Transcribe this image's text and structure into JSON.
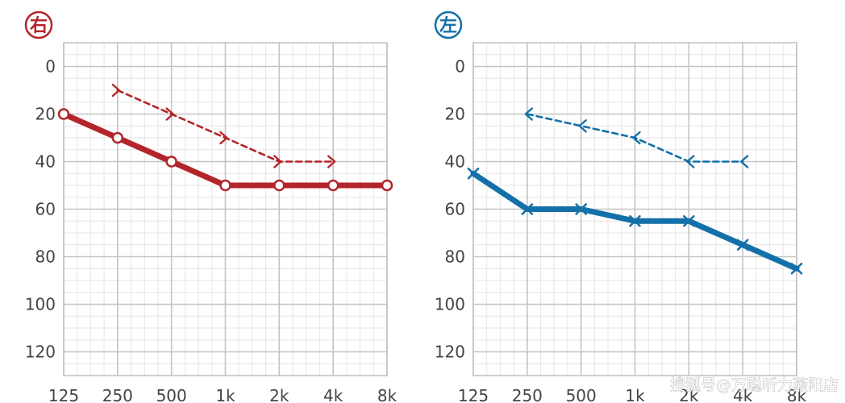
{
  "chart_data": [
    {
      "type": "line",
      "side": "right",
      "badge": "右",
      "color": "#b3252a",
      "categories": [
        "125",
        "250",
        "500",
        "1k",
        "2k",
        "4k",
        "8k"
      ],
      "y_ticks": [
        "0",
        "20",
        "40",
        "60",
        "80",
        "100",
        "120"
      ],
      "ylim": [
        -10,
        130
      ],
      "y_inverted": true,
      "grid": true,
      "series": [
        {
          "style": "solid",
          "marker": "circle",
          "x": [
            "125",
            "250",
            "500",
            "1k",
            "2k",
            "4k",
            "8k"
          ],
          "values": [
            20,
            30,
            40,
            50,
            50,
            50,
            50
          ]
        },
        {
          "style": "dashed",
          "marker": "bone-right",
          "x": [
            "250",
            "500",
            "1k",
            "2k",
            "4k"
          ],
          "values": [
            10,
            20,
            30,
            40,
            40
          ]
        }
      ]
    },
    {
      "type": "line",
      "side": "left",
      "badge": "左",
      "color": "#1470a8",
      "categories": [
        "125",
        "250",
        "500",
        "1k",
        "2k",
        "4k",
        "8k"
      ],
      "y_ticks": [
        "0",
        "20",
        "40",
        "60",
        "80",
        "100",
        "120"
      ],
      "ylim": [
        -10,
        130
      ],
      "y_inverted": true,
      "grid": true,
      "series": [
        {
          "style": "solid",
          "marker": "cross",
          "x": [
            "125",
            "250",
            "500",
            "1k",
            "2k",
            "4k",
            "8k"
          ],
          "values": [
            45,
            60,
            60,
            65,
            65,
            75,
            85
          ]
        },
        {
          "style": "dashed",
          "marker": "bone-left",
          "x": [
            "250",
            "500",
            "1k",
            "2k",
            "4k"
          ],
          "values": [
            20,
            25,
            30,
            40,
            40
          ]
        }
      ]
    }
  ],
  "watermark": "搜狐号@万聪听力燕阳店"
}
